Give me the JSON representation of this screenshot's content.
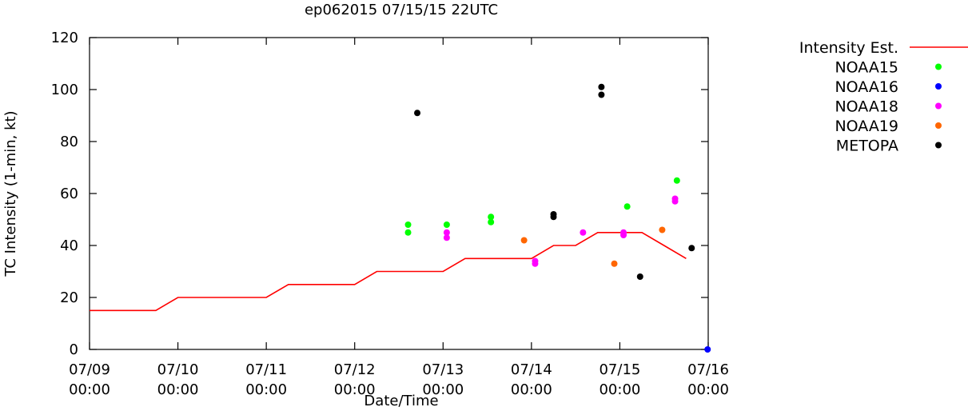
{
  "chart_data": {
    "type": "scatter",
    "title": "ep062015 07/15/15 22UTC",
    "xlabel": "Date/Time",
    "ylabel": "TC Intensity (1-min, kt)",
    "xlim": [
      "2015-07-09 00:00",
      "2015-07-16 00:00"
    ],
    "ylim": [
      0,
      120
    ],
    "y_ticks": [
      "0",
      "20",
      "40",
      "60",
      "80",
      "100",
      "120"
    ],
    "x_ticks": [
      {
        "date": "07/09",
        "time": "00:00"
      },
      {
        "date": "07/10",
        "time": "00:00"
      },
      {
        "date": "07/11",
        "time": "00:00"
      },
      {
        "date": "07/12",
        "time": "00:00"
      },
      {
        "date": "07/13",
        "time": "00:00"
      },
      {
        "date": "07/14",
        "time": "00:00"
      },
      {
        "date": "07/15",
        "time": "00:00"
      },
      {
        "date": "07/16",
        "time": "00:00"
      }
    ],
    "grid": false,
    "legend_position": "right, outside plot",
    "series": [
      {
        "name": "Intensity Est.",
        "kind": "line",
        "color": "#ff0000",
        "points": [
          {
            "x": "2015-07-09 00:00",
            "y": 15
          },
          {
            "x": "2015-07-09 18:00",
            "y": 15
          },
          {
            "x": "2015-07-10 00:00",
            "y": 20
          },
          {
            "x": "2015-07-11 00:00",
            "y": 20
          },
          {
            "x": "2015-07-11 06:00",
            "y": 25
          },
          {
            "x": "2015-07-12 00:00",
            "y": 25
          },
          {
            "x": "2015-07-12 06:00",
            "y": 30
          },
          {
            "x": "2015-07-13 00:00",
            "y": 30
          },
          {
            "x": "2015-07-13 06:00",
            "y": 35
          },
          {
            "x": "2015-07-14 00:00",
            "y": 35
          },
          {
            "x": "2015-07-14 06:00",
            "y": 40
          },
          {
            "x": "2015-07-14 12:00",
            "y": 40
          },
          {
            "x": "2015-07-14 18:00",
            "y": 45
          },
          {
            "x": "2015-07-15 06:00",
            "y": 45
          },
          {
            "x": "2015-07-15 12:00",
            "y": 40
          },
          {
            "x": "2015-07-15 18:00",
            "y": 35
          }
        ]
      },
      {
        "name": "NOAA15",
        "kind": "points",
        "color": "#00ff00",
        "points": [
          {
            "x": "2015-07-12 14:30",
            "y": 48
          },
          {
            "x": "2015-07-12 14:30",
            "y": 45
          },
          {
            "x": "2015-07-13 01:00",
            "y": 48
          },
          {
            "x": "2015-07-13 13:00",
            "y": 51
          },
          {
            "x": "2015-07-13 13:00",
            "y": 49
          },
          {
            "x": "2015-07-15 02:00",
            "y": 55
          },
          {
            "x": "2015-07-15 15:30",
            "y": 65
          }
        ]
      },
      {
        "name": "NOAA16",
        "kind": "points",
        "color": "#0000ff",
        "points": [
          {
            "x": "2015-07-15 23:50",
            "y": 0
          }
        ]
      },
      {
        "name": "NOAA18",
        "kind": "points",
        "color": "#ff00ff",
        "points": [
          {
            "x": "2015-07-13 01:00",
            "y": 45
          },
          {
            "x": "2015-07-13 01:00",
            "y": 43
          },
          {
            "x": "2015-07-14 01:00",
            "y": 34
          },
          {
            "x": "2015-07-14 01:00",
            "y": 33
          },
          {
            "x": "2015-07-14 14:00",
            "y": 45
          },
          {
            "x": "2015-07-15 01:00",
            "y": 45
          },
          {
            "x": "2015-07-15 01:00",
            "y": 44
          },
          {
            "x": "2015-07-15 15:00",
            "y": 58
          },
          {
            "x": "2015-07-15 15:00",
            "y": 57
          }
        ]
      },
      {
        "name": "NOAA19",
        "kind": "points",
        "color": "#ff6600",
        "points": [
          {
            "x": "2015-07-13 22:00",
            "y": 42
          },
          {
            "x": "2015-07-14 22:30",
            "y": 33
          },
          {
            "x": "2015-07-15 11:30",
            "y": 46
          }
        ]
      },
      {
        "name": "METOPA",
        "kind": "points",
        "color": "#000000",
        "points": [
          {
            "x": "2015-07-12 17:00",
            "y": 91
          },
          {
            "x": "2015-07-14 06:00",
            "y": 52
          },
          {
            "x": "2015-07-14 06:00",
            "y": 51
          },
          {
            "x": "2015-07-14 19:00",
            "y": 101
          },
          {
            "x": "2015-07-14 19:00",
            "y": 98
          },
          {
            "x": "2015-07-15 05:30",
            "y": 28
          },
          {
            "x": "2015-07-15 19:30",
            "y": 39
          }
        ]
      }
    ]
  }
}
